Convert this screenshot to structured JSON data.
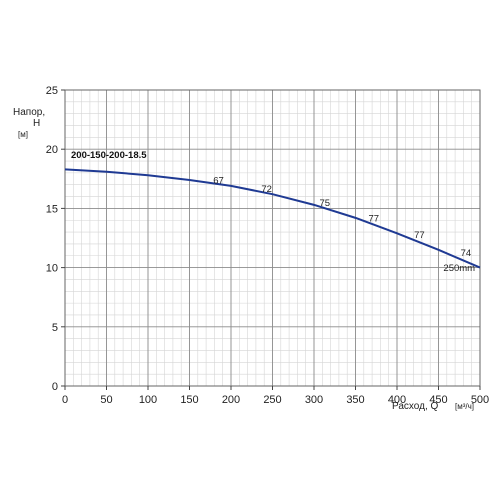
{
  "chart_data": {
    "type": "line",
    "title": "",
    "ylabel": {
      "line1": "Напор,",
      "line2": "H",
      "unit": "[м]"
    },
    "xlabel": {
      "text": "Расход, Q",
      "unit": "[м³/ч]"
    },
    "xlim": [
      0,
      500
    ],
    "ylim": [
      0,
      25
    ],
    "x_ticks": [
      0,
      50,
      100,
      150,
      200,
      250,
      300,
      350,
      400,
      450,
      500
    ],
    "y_ticks": [
      0,
      5,
      10,
      15,
      20,
      25
    ],
    "grid": true,
    "minor_grid": {
      "x_step": 10,
      "y_step": 1
    },
    "legend": "none",
    "series": [
      {
        "name": "200-150-200-18.5",
        "color": "#1f3a93",
        "x": [
          0,
          50,
          100,
          150,
          200,
          250,
          300,
          350,
          400,
          450,
          500
        ],
        "y": [
          18.3,
          18.1,
          17.8,
          17.4,
          16.9,
          16.2,
          15.3,
          14.2,
          12.9,
          11.5,
          10.0
        ]
      }
    ],
    "efficiency_labels": [
      {
        "text": "67",
        "x": 185,
        "y": 17.1
      },
      {
        "text": "72",
        "x": 243,
        "y": 16.4
      },
      {
        "text": "75",
        "x": 313,
        "y": 15.2
      },
      {
        "text": "77",
        "x": 372,
        "y": 13.9
      },
      {
        "text": "77",
        "x": 427,
        "y": 12.5
      },
      {
        "text": "74",
        "x": 483,
        "y": 11.0
      }
    ],
    "curve_label": {
      "text": "250mm",
      "x": 475,
      "y": 9.7
    }
  }
}
